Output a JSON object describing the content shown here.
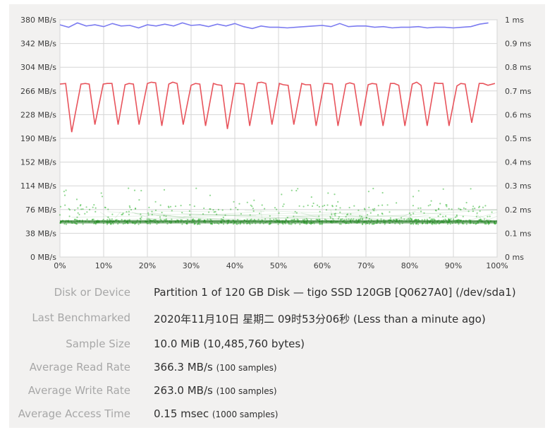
{
  "chart_data": {
    "type": "line",
    "x_ticks": [
      "0%",
      "10%",
      "20%",
      "30%",
      "40%",
      "50%",
      "60%",
      "70%",
      "80%",
      "90%",
      "100%"
    ],
    "y_left_ticks": [
      "0 MB/s",
      "38 MB/s",
      "76 MB/s",
      "114 MB/s",
      "152 MB/s",
      "190 MB/s",
      "228 MB/s",
      "266 MB/s",
      "304 MB/s",
      "342 MB/s",
      "380 MB/s"
    ],
    "y_right_ticks": [
      "0 ms",
      "0.1 ms",
      "0.2 ms",
      "0.3 ms",
      "0.4 ms",
      "0.5 ms",
      "0.6 ms",
      "0.7 ms",
      "0.8 ms",
      "0.9 ms",
      "1 ms"
    ],
    "xlim": [
      0,
      100
    ],
    "ylim_left": [
      0,
      380
    ],
    "ylim_right": [
      0,
      1
    ],
    "grid": true,
    "series": [
      {
        "role": "read",
        "color": "#7b7bf0",
        "axis": "left",
        "x": [
          0,
          2,
          4,
          6,
          8,
          10,
          12,
          14,
          16,
          18,
          20,
          22,
          24,
          26,
          28,
          30,
          32,
          34,
          36,
          38,
          40,
          42,
          44,
          46,
          48,
          50,
          52,
          54,
          56,
          58,
          60,
          62,
          64,
          66,
          68,
          70,
          72,
          74,
          76,
          78,
          80,
          82,
          84,
          86,
          88,
          90,
          92,
          94,
          96,
          98
        ],
        "values": [
          372,
          368,
          375,
          370,
          372,
          369,
          374,
          370,
          371,
          367,
          372,
          370,
          373,
          370,
          375,
          371,
          372,
          369,
          373,
          370,
          374,
          369,
          366,
          370,
          368,
          368,
          367,
          368,
          369,
          370,
          371,
          369,
          374,
          369,
          370,
          370,
          368,
          369,
          367,
          368,
          368,
          369,
          367,
          368,
          368,
          367,
          368,
          369,
          373,
          375
        ]
      },
      {
        "role": "write",
        "color": "#e8545c",
        "axis": "left",
        "x": [
          0,
          1.3,
          2.7,
          4.8,
          5.8,
          6.7,
          8.0,
          9.9,
          10.8,
          11.9,
          13.3,
          14.9,
          15.8,
          16.8,
          18.1,
          20.0,
          20.9,
          21.9,
          23.3,
          24.9,
          25.8,
          26.8,
          28.2,
          30.0,
          31.0,
          32.0,
          33.3,
          35.1,
          36.0,
          37.0,
          38.3,
          40.1,
          41.0,
          42.1,
          43.4,
          45.2,
          46.1,
          47.1,
          48.5,
          50.2,
          51.1,
          52.2,
          53.5,
          55.3,
          56.2,
          57.3,
          58.6,
          60.4,
          61.3,
          62.3,
          63.6,
          65.4,
          66.3,
          67.3,
          68.8,
          70.5,
          71.4,
          72.4,
          73.9,
          75.6,
          76.5,
          77.5,
          78.9,
          80.6,
          81.6,
          82.6,
          84.0,
          85.7,
          86.6,
          87.6,
          89.0,
          90.8,
          91.7,
          92.7,
          94.2,
          95.9,
          96.8,
          97.9,
          99.5
        ],
        "values": [
          277,
          278,
          200,
          277,
          278,
          277,
          212,
          277,
          278,
          278,
          212,
          276,
          278,
          277,
          212,
          278,
          280,
          279,
          210,
          277,
          280,
          278,
          212,
          275,
          278,
          277,
          210,
          278,
          276,
          275,
          205,
          278,
          278,
          277,
          210,
          279,
          280,
          278,
          212,
          278,
          276,
          275,
          212,
          278,
          276,
          276,
          210,
          278,
          278,
          277,
          210,
          277,
          279,
          277,
          210,
          276,
          278,
          277,
          210,
          278,
          278,
          275,
          210,
          277,
          280,
          275,
          210,
          279,
          278,
          278,
          210,
          274,
          278,
          277,
          215,
          278,
          278,
          275,
          278
        ]
      },
      {
        "role": "access-time",
        "color": "#34b734",
        "axis": "right",
        "type": "scatter",
        "approx_range_ms": [
          0.11,
          0.29
        ],
        "typical_ms": 0.15
      }
    ]
  },
  "info": {
    "rows": [
      {
        "label": "Disk or Device",
        "value": "Partition 1 of 120 GB Disk — tigo SSD 120GB [Q0627A0] (/dev/sda1)",
        "sub": ""
      },
      {
        "label": "Last Benchmarked",
        "value": "2020年11月10日 星期二 09时53分06秒 (Less than a minute ago)",
        "sub": ""
      },
      {
        "label": "Sample Size",
        "value": "10.0 MiB (10,485,760 bytes)",
        "sub": ""
      },
      {
        "label": "Average Read Rate",
        "value": "366.3 MB/s",
        "sub": "(100 samples)"
      },
      {
        "label": "Average Write Rate",
        "value": "263.0 MB/s",
        "sub": "(100 samples)"
      },
      {
        "label": "Average Access Time",
        "value": "0.15 msec",
        "sub": "(1000 samples)"
      }
    ]
  }
}
